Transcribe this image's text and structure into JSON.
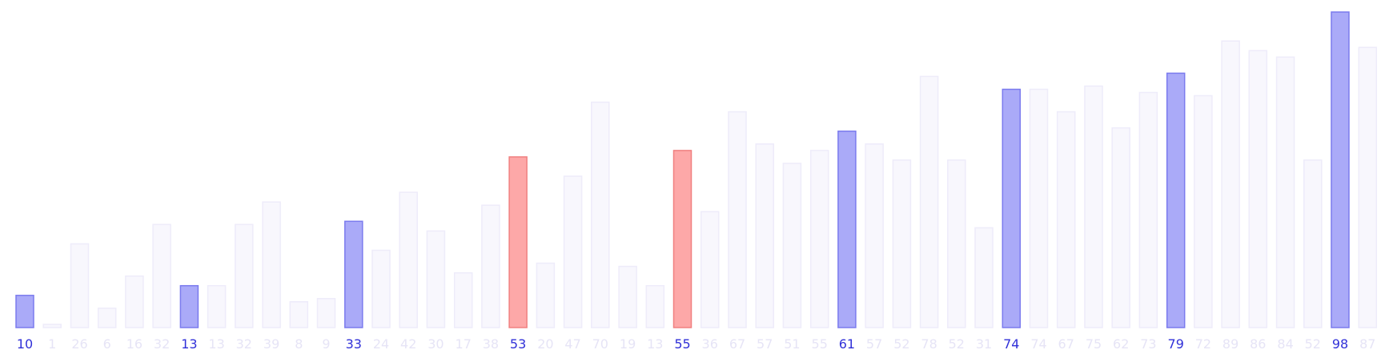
{
  "chart_data": {
    "type": "bar",
    "categories": [
      "10",
      "1",
      "26",
      "6",
      "16",
      "32",
      "13",
      "13",
      "32",
      "39",
      "8",
      "9",
      "33",
      "24",
      "42",
      "30",
      "17",
      "38",
      "53",
      "20",
      "47",
      "70",
      "19",
      "13",
      "55",
      "36",
      "67",
      "57",
      "51",
      "55",
      "61",
      "57",
      "52",
      "78",
      "52",
      "31",
      "74",
      "74",
      "67",
      "75",
      "62",
      "73",
      "79",
      "72",
      "89",
      "86",
      "84",
      "52",
      "98",
      "87"
    ],
    "values": [
      10,
      1,
      26,
      6,
      16,
      32,
      13,
      13,
      32,
      39,
      8,
      9,
      33,
      24,
      42,
      30,
      17,
      38,
      53,
      20,
      47,
      70,
      19,
      13,
      55,
      36,
      67,
      57,
      51,
      55,
      61,
      57,
      52,
      78,
      52,
      31,
      74,
      74,
      67,
      75,
      62,
      73,
      79,
      72,
      89,
      86,
      84,
      52,
      98,
      87
    ],
    "states": [
      "active",
      "faded",
      "faded",
      "faded",
      "faded",
      "faded",
      "active",
      "faded",
      "faded",
      "faded",
      "faded",
      "faded",
      "active",
      "faded",
      "faded",
      "faded",
      "faded",
      "faded",
      "compare",
      "faded",
      "faded",
      "faded",
      "faded",
      "faded",
      "compare",
      "faded",
      "faded",
      "faded",
      "faded",
      "faded",
      "active",
      "faded",
      "faded",
      "faded",
      "faded",
      "faded",
      "active",
      "faded",
      "faded",
      "faded",
      "faded",
      "faded",
      "active",
      "faded",
      "faded",
      "faded",
      "faded",
      "faded",
      "active",
      "faded"
    ],
    "ylim": [
      0,
      98
    ],
    "grid": false,
    "title": "",
    "xlabel": "",
    "ylabel": "",
    "colors": {
      "active_fill": "#aaaaf8",
      "active_stroke": "#7b7bee",
      "active_label": "#3030d8",
      "compare_fill": "#fda8a8",
      "compare_stroke": "#f08080",
      "compare_label": "#3030d8",
      "faded_fill": "#f8f7fd",
      "faded_stroke": "#eeecfa",
      "faded_label": "#e6e4f6"
    }
  }
}
